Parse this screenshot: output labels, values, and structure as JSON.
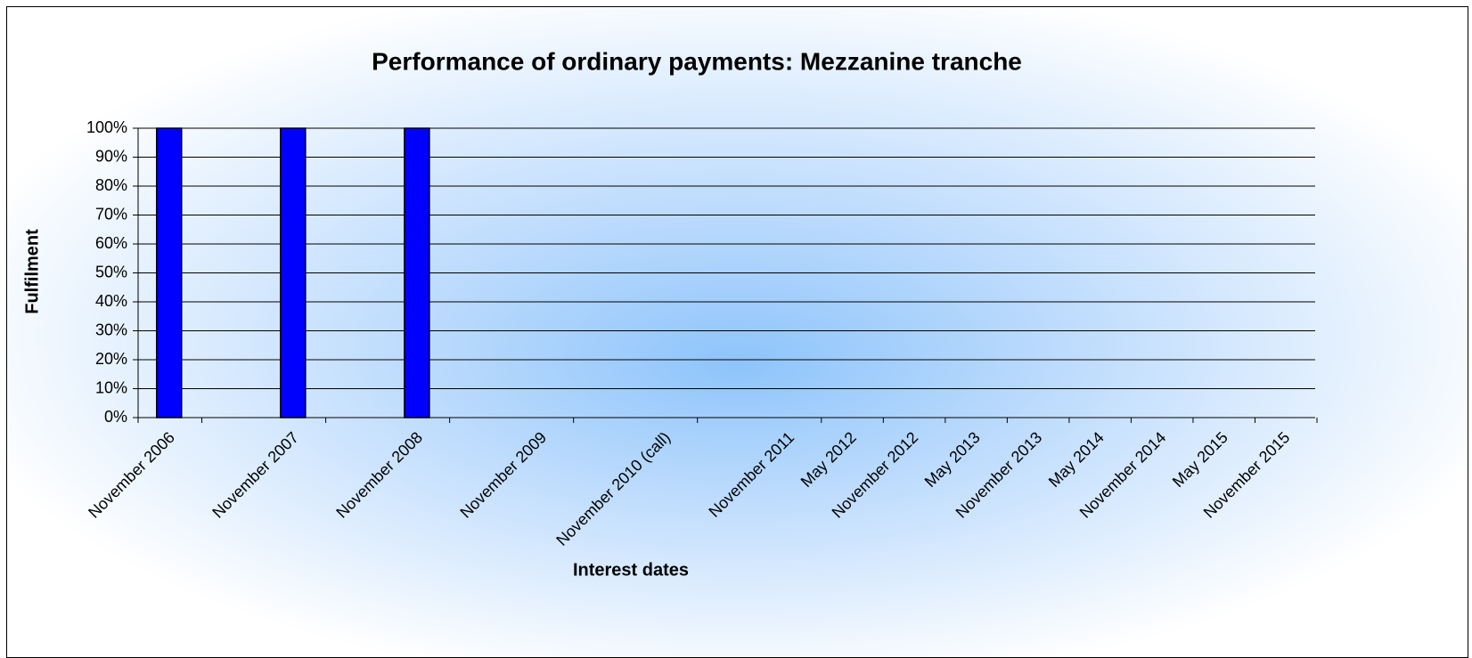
{
  "chart_data": {
    "type": "bar",
    "title": "Performance of ordinary payments: Mezzanine tranche",
    "x_label": "Interest dates",
    "y_label": "Fulfilment",
    "categories": [
      "November 2006",
      "November 2007",
      "November 2008",
      "November 2009",
      "November 2010 (call)",
      "November 2011",
      "May 2012",
      "November 2012",
      "May 2013",
      "November 2013",
      "May 2014",
      "November 2014",
      "May 2015",
      "November 2015"
    ],
    "values": [
      100,
      100,
      100,
      null,
      null,
      null,
      null,
      null,
      null,
      null,
      null,
      null,
      null,
      null
    ],
    "color": "#0000ff",
    "ylim": [
      0,
      100
    ],
    "yticks": [
      {
        "value": 0,
        "label": "0%"
      },
      {
        "value": 10,
        "label": "10%"
      },
      {
        "value": 20,
        "label": "20%"
      },
      {
        "value": 30,
        "label": "30%"
      },
      {
        "value": 40,
        "label": "40%"
      },
      {
        "value": 50,
        "label": "50%"
      },
      {
        "value": 60,
        "label": "60%"
      },
      {
        "value": 70,
        "label": "70%"
      },
      {
        "value": 80,
        "label": "80%"
      },
      {
        "value": 90,
        "label": "90%"
      },
      {
        "value": 100,
        "label": "100%"
      }
    ],
    "grid": true
  }
}
